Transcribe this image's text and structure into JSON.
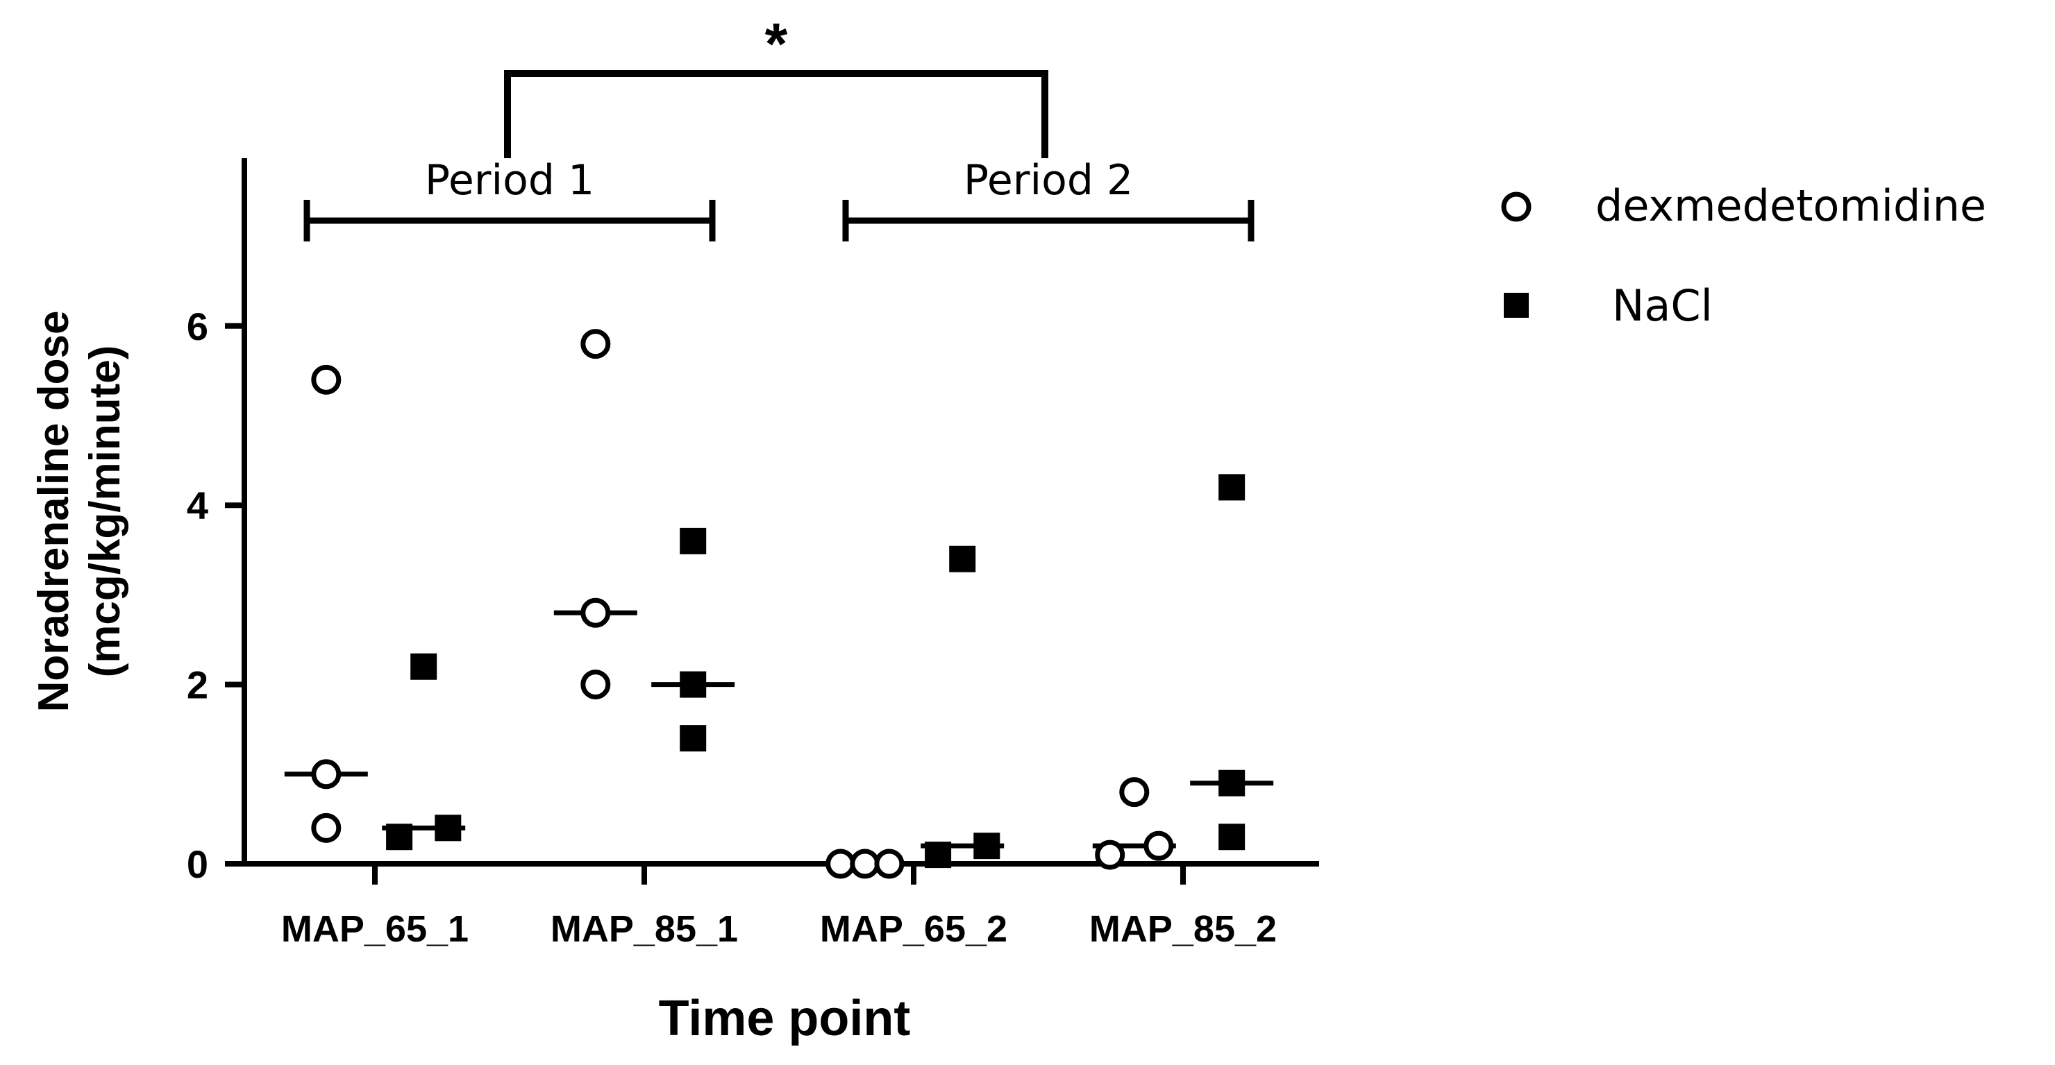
{
  "chart_data": {
    "type": "scatter",
    "xlabel": "Time point",
    "ylabel_line1": "Noradrenaline dose",
    "ylabel_line2": "(mcg/kg/minute)",
    "ylim": [
      0,
      7.8
    ],
    "yticks": [
      0,
      2,
      4,
      6
    ],
    "categories": [
      "MAP_65_1",
      "MAP_85_1",
      "MAP_65_2",
      "MAP_85_2"
    ],
    "series": [
      {
        "name": "dexmedetomidine",
        "marker": "open-circle",
        "color": "#000000",
        "points": [
          {
            "category": 0,
            "offset": -0.18,
            "y": 5.4
          },
          {
            "category": 0,
            "offset": -0.18,
            "y": 1.0
          },
          {
            "category": 0,
            "offset": -0.18,
            "y": 0.4
          },
          {
            "category": 1,
            "offset": -0.18,
            "y": 5.8
          },
          {
            "category": 1,
            "offset": -0.18,
            "y": 2.8
          },
          {
            "category": 1,
            "offset": -0.18,
            "y": 2.0
          },
          {
            "category": 2,
            "offset": -0.27,
            "y": 0.0
          },
          {
            "category": 2,
            "offset": -0.18,
            "y": 0.0
          },
          {
            "category": 2,
            "offset": -0.09,
            "y": 0.0
          },
          {
            "category": 3,
            "offset": -0.27,
            "y": 0.1
          },
          {
            "category": 3,
            "offset": -0.18,
            "y": 0.8
          },
          {
            "category": 3,
            "offset": -0.09,
            "y": 0.2
          }
        ],
        "medians": [
          1.0,
          2.8,
          0.0,
          0.2
        ]
      },
      {
        "name": "NaCl",
        "marker": "filled-square",
        "color": "#000000",
        "points": [
          {
            "category": 0,
            "offset": 0.18,
            "y": 2.2
          },
          {
            "category": 0,
            "offset": 0.09,
            "y": 0.3
          },
          {
            "category": 0,
            "offset": 0.27,
            "y": 0.4
          },
          {
            "category": 1,
            "offset": 0.18,
            "y": 3.6
          },
          {
            "category": 1,
            "offset": 0.18,
            "y": 2.0
          },
          {
            "category": 1,
            "offset": 0.18,
            "y": 1.4
          },
          {
            "category": 2,
            "offset": 0.09,
            "y": 0.1
          },
          {
            "category": 2,
            "offset": 0.18,
            "y": 3.4
          },
          {
            "category": 2,
            "offset": 0.27,
            "y": 0.2
          },
          {
            "category": 3,
            "offset": 0.18,
            "y": 4.2
          },
          {
            "category": 3,
            "offset": 0.18,
            "y": 0.9
          },
          {
            "category": 3,
            "offset": 0.18,
            "y": 0.3
          }
        ],
        "medians": [
          0.4,
          2.0,
          0.2,
          0.9
        ]
      }
    ],
    "periods": [
      {
        "label": "Period 1",
        "from": 0,
        "to": 1
      },
      {
        "label": "Period 2",
        "from": 2,
        "to": 3
      }
    ],
    "significance": {
      "label": "*",
      "from": "Period 1",
      "to": "Period 2"
    },
    "legend": {
      "placement": "right"
    },
    "grid": false
  }
}
